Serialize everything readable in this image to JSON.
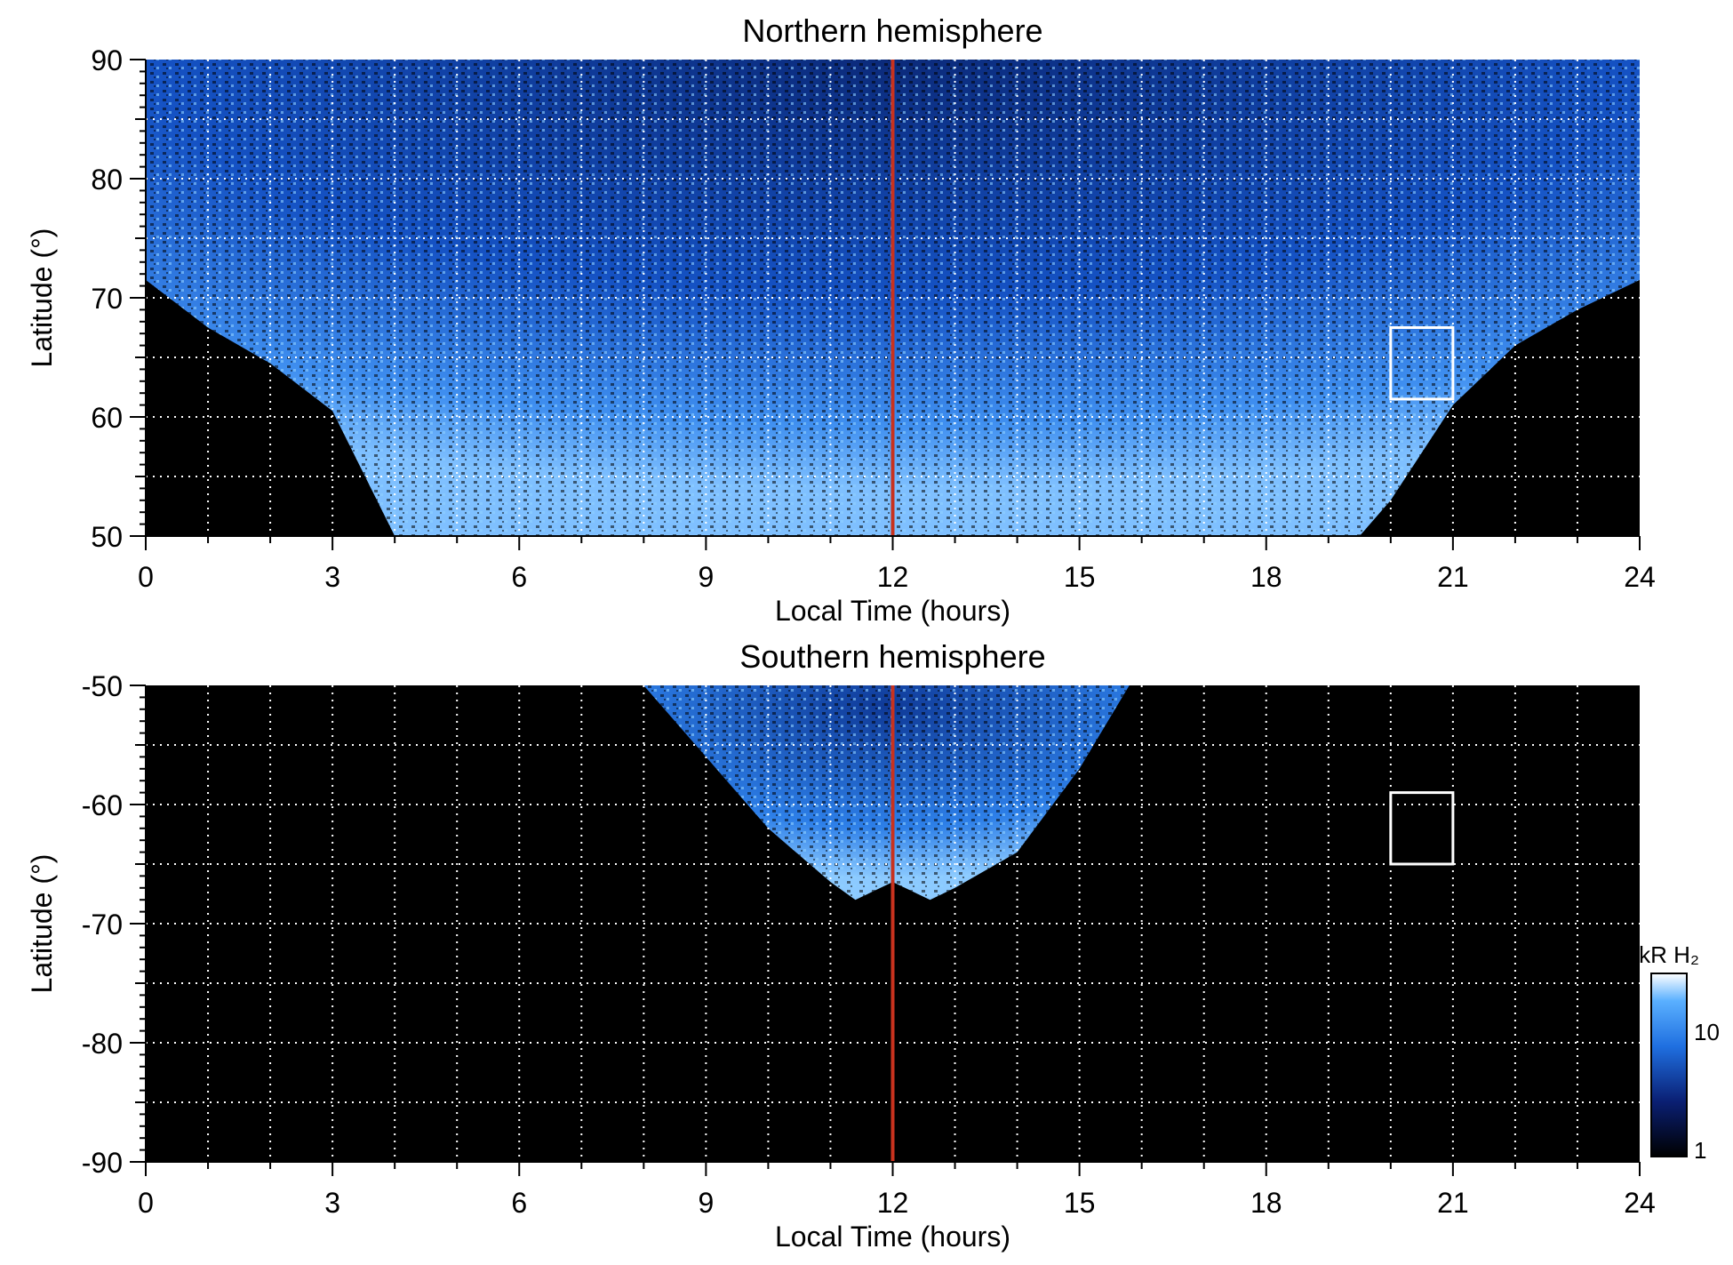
{
  "chart_data": [
    {
      "type": "heatmap",
      "title": "Northern hemisphere",
      "xlabel": "Local Time (hours)",
      "ylabel": "Latitude (°)",
      "xlim": [
        0,
        24
      ],
      "ylim": [
        50,
        90
      ],
      "xticks": [
        "0",
        "3",
        "6",
        "9",
        "12",
        "15",
        "18",
        "21",
        "24"
      ],
      "yticks": [
        "50",
        "60",
        "70",
        "80",
        "90"
      ],
      "grid": true,
      "marker_line": {
        "x": 12,
        "color": "#c8321e"
      },
      "region_box": {
        "x": [
          20,
          21
        ],
        "y": [
          61.5,
          67.5
        ]
      },
      "coverage": [
        {
          "lt": 0,
          "lat_min": 71.5
        },
        {
          "lt": 1,
          "lat_min": 67.5
        },
        {
          "lt": 2,
          "lat_min": 64.5
        },
        {
          "lt": 3,
          "lat_min": 60.5
        },
        {
          "lt": 4,
          "lat_min": 50
        },
        {
          "lt": 19.5,
          "lat_min": 50
        },
        {
          "lt": 20,
          "lat_min": 53
        },
        {
          "lt": 21,
          "lat_min": 61
        },
        {
          "lt": 22,
          "lat_min": 66
        },
        {
          "lt": 23,
          "lat_min": 69
        },
        {
          "lt": 24,
          "lat_min": 71.5
        }
      ]
    },
    {
      "type": "heatmap",
      "title": "Southern hemisphere",
      "xlabel": "Local Time (hours)",
      "ylabel": "Latitude (°)",
      "xlim": [
        0,
        24
      ],
      "ylim": [
        -90,
        -50
      ],
      "xticks": [
        "0",
        "3",
        "6",
        "9",
        "12",
        "15",
        "18",
        "21",
        "24"
      ],
      "yticks": [
        "-90",
        "-80",
        "-70",
        "-60",
        "-50"
      ],
      "grid": true,
      "marker_line": {
        "x": 12,
        "color": "#c8321e"
      },
      "region_box": {
        "x": [
          20,
          21
        ],
        "y": [
          -65,
          -59
        ]
      },
      "coverage": [
        {
          "lt": 8,
          "lat_min": -50
        },
        {
          "lt": 9,
          "lat_min": -56
        },
        {
          "lt": 10,
          "lat_min": -62
        },
        {
          "lt": 11,
          "lat_min": -66.5
        },
        {
          "lt": 11.4,
          "lat_min": -68
        },
        {
          "lt": 12,
          "lat_min": -66.5
        },
        {
          "lt": 12.6,
          "lat_min": -68
        },
        {
          "lt": 13,
          "lat_min": -67
        },
        {
          "lt": 14,
          "lat_min": -64
        },
        {
          "lt": 15,
          "lat_min": -57
        },
        {
          "lt": 15.8,
          "lat_min": -50
        }
      ]
    }
  ],
  "colorbar": {
    "label": "kR H₂",
    "scale": "log",
    "ticks": [
      "1",
      "10"
    ],
    "colors": [
      "#000000",
      "#0a1f73",
      "#1f6fe0",
      "#5ab0ff",
      "#ffffff"
    ]
  }
}
